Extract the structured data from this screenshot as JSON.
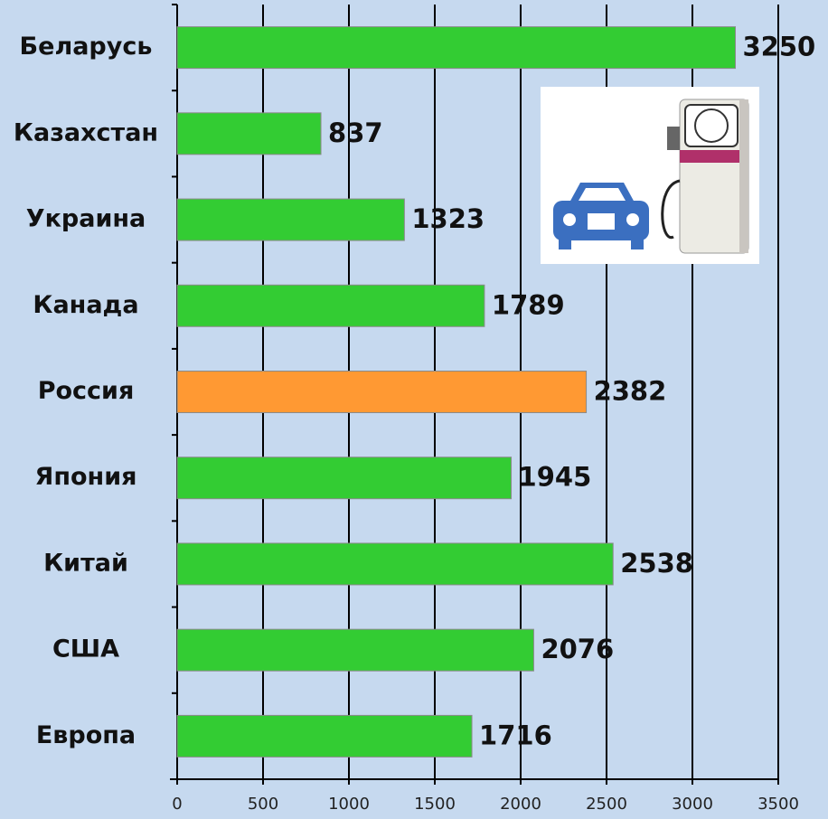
{
  "chart_data": {
    "type": "hbar",
    "categories": [
      "Беларусь",
      "Казахстан",
      "Украина",
      "Канада",
      "Россия",
      "Япония",
      "Китай",
      "США",
      "Европа"
    ],
    "values": [
      3250,
      837,
      1323,
      1789,
      2382,
      1945,
      2538,
      2076,
      1716
    ],
    "colors": [
      "#33cc33",
      "#33cc33",
      "#33cc33",
      "#33cc33",
      "#ff9933",
      "#33cc33",
      "#33cc33",
      "#33cc33",
      "#33cc33"
    ],
    "xlim": [
      0,
      3500
    ],
    "xticks": [
      0,
      500,
      1000,
      1500,
      2000,
      2500,
      3000,
      3500
    ],
    "grid": true
  }
}
